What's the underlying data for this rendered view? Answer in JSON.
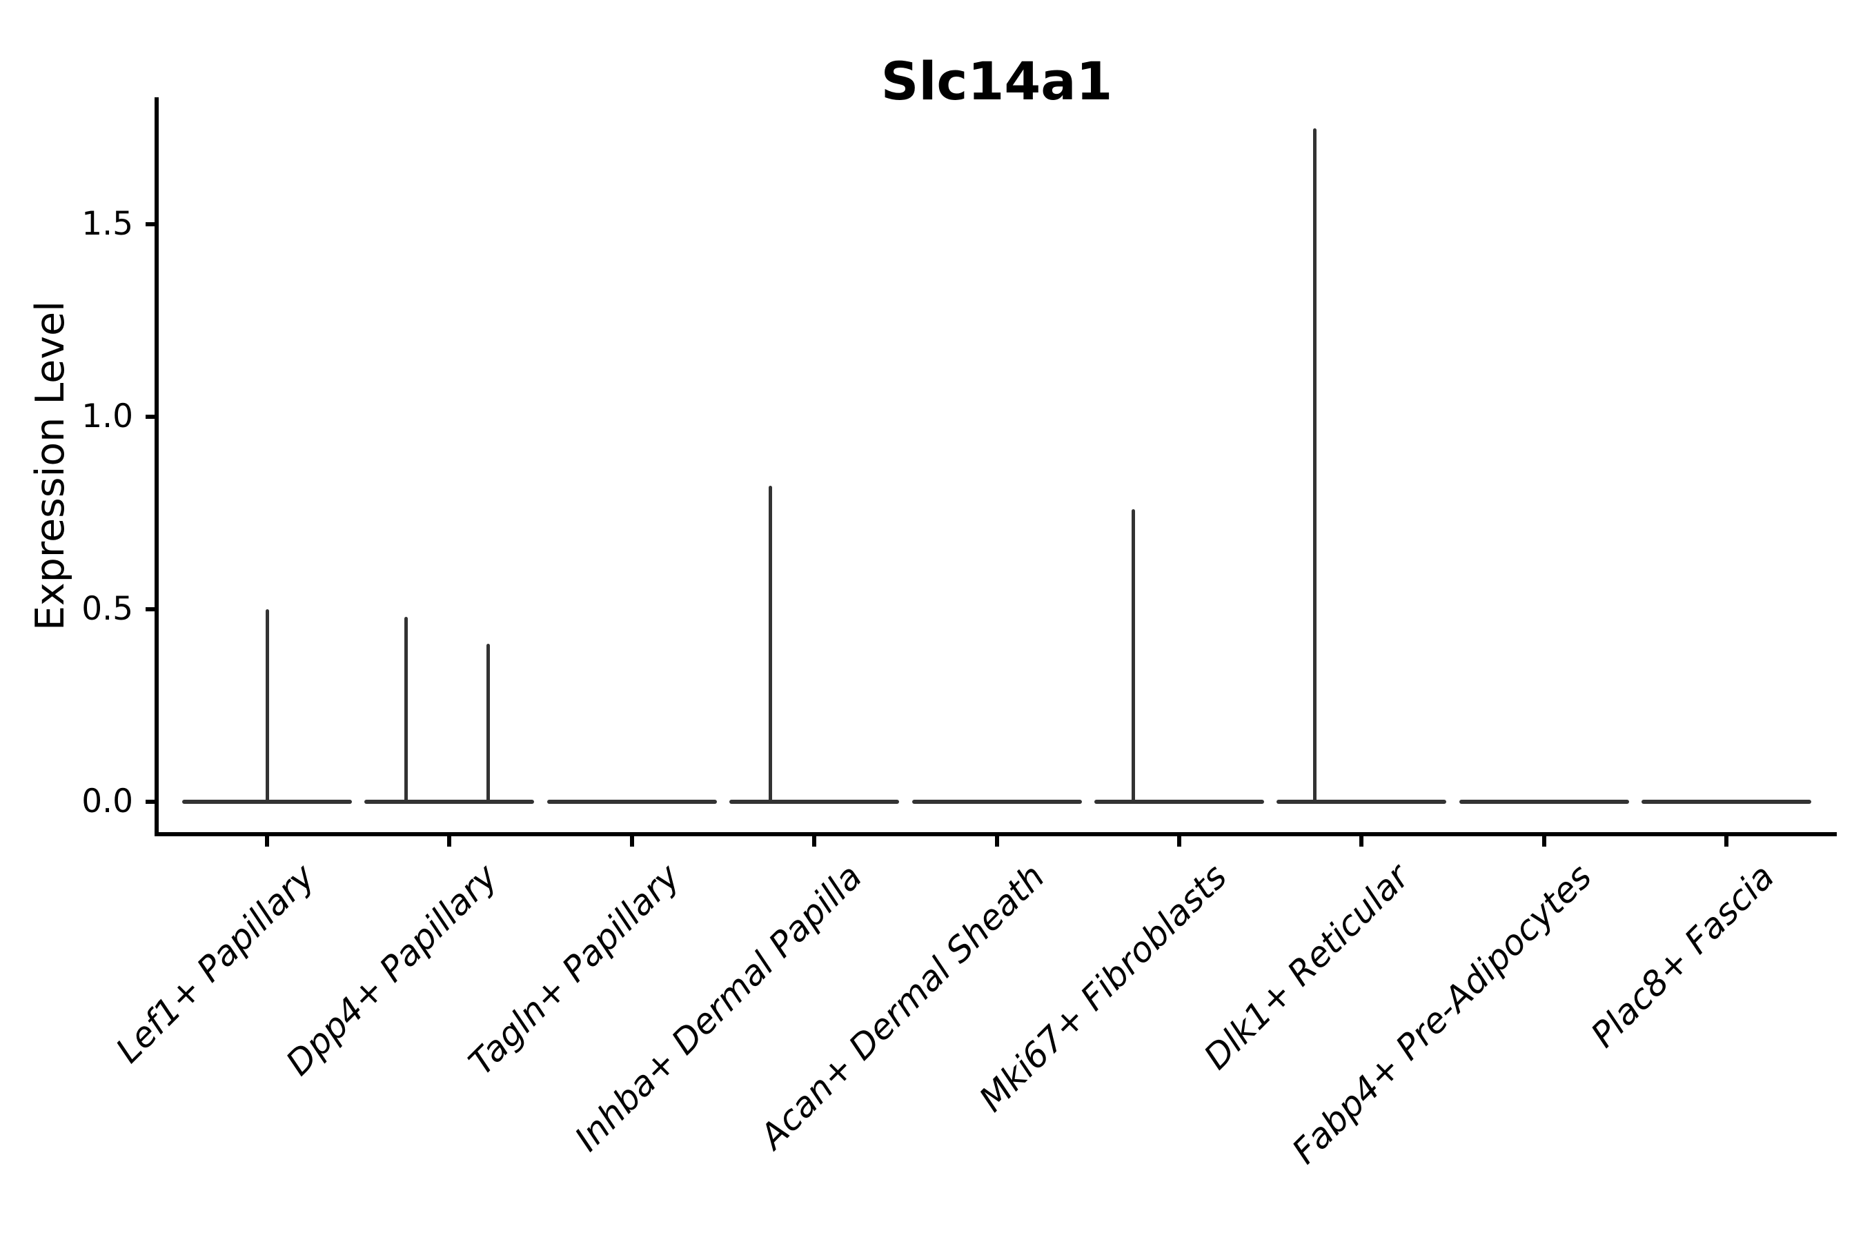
{
  "title": "Slc14a1",
  "axes": {
    "ylabel": "Expression Level",
    "y_tick_labels": [
      "0.0",
      "0.5",
      "1.0",
      "1.5"
    ]
  },
  "chart_data": {
    "type": "violin",
    "title": "Slc14a1",
    "xlabel": "",
    "ylabel": "Expression Level",
    "ylim": [
      -0.087,
      1.833
    ],
    "y_tick_values": [
      0.0,
      0.5,
      1.0,
      1.5
    ],
    "grid": false,
    "legend": "none",
    "categories": [
      "Lef1+ Papillary",
      "Dpp4+ Papillary",
      "Tagln+ Papillary",
      "Inhba+ Dermal Papilla",
      "Acan+ Dermal Sheath",
      "Mki67+ Fibroblasts",
      "Dlk1+ Reticular",
      "Fabp4+ Pre-Adipocytes",
      "Plac8+ Fascia"
    ],
    "series": [
      {
        "category": "Lef1+ Papillary",
        "baseline_value": 0.0,
        "spikes": [
          {
            "value": 0.5,
            "offset_frac": 0.0
          }
        ]
      },
      {
        "category": "Dpp4+ Papillary",
        "baseline_value": 0.0,
        "spikes": [
          {
            "value": 0.48,
            "offset_frac": -0.238
          },
          {
            "value": 0.41,
            "offset_frac": 0.212
          }
        ]
      },
      {
        "category": "Tagln+ Papillary",
        "baseline_value": 0.0,
        "spikes": []
      },
      {
        "category": "Inhba+ Dermal Papilla",
        "baseline_value": 0.0,
        "spikes": [
          {
            "value": 0.82,
            "offset_frac": -0.242
          }
        ]
      },
      {
        "category": "Acan+ Dermal Sheath",
        "baseline_value": 0.0,
        "spikes": []
      },
      {
        "category": "Mki67+ Fibroblasts",
        "baseline_value": 0.0,
        "spikes": [
          {
            "value": 0.76,
            "offset_frac": -0.253
          }
        ]
      },
      {
        "category": "Dlk1+ Reticular",
        "baseline_value": 0.0,
        "spikes": [
          {
            "value": 1.75,
            "offset_frac": -0.257
          }
        ]
      },
      {
        "category": "Fabp4+ Pre-Adipocytes",
        "baseline_value": 0.0,
        "spikes": []
      },
      {
        "category": "Plac8+ Fascia",
        "baseline_value": 0.0,
        "spikes": []
      }
    ],
    "style": {
      "violin_line_color": "#333333",
      "axis_color": "#000000",
      "violin_rel_width": 0.93
    }
  }
}
